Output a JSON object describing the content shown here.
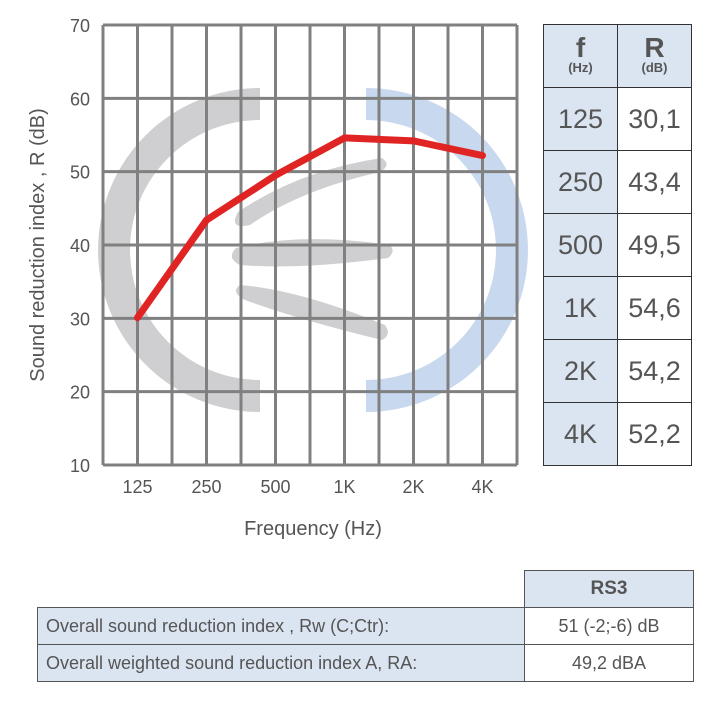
{
  "chart_data": {
    "type": "line",
    "title": "",
    "xlabel": "Frequency (Hz)",
    "ylabel": "Sound reduction index , R (dB)",
    "categories": [
      "125",
      "250",
      "500",
      "1K",
      "2K",
      "4K"
    ],
    "series": [
      {
        "name": "R",
        "values": [
          30.1,
          43.4,
          49.5,
          54.6,
          54.2,
          52.2
        ],
        "color": "#e02424"
      }
    ],
    "ylim": [
      10,
      70
    ],
    "yticks": [
      10,
      20,
      30,
      40,
      50,
      60,
      70
    ],
    "grid": true
  },
  "freq_table": {
    "headers": [
      {
        "main": "f",
        "unit": "(Hz)"
      },
      {
        "main": "R",
        "unit": "(dB)"
      }
    ],
    "rows": [
      [
        "125",
        "30,1"
      ],
      [
        "250",
        "43,4"
      ],
      [
        "500",
        "49,5"
      ],
      [
        "1K",
        "54,6"
      ],
      [
        "2K",
        "54,2"
      ],
      [
        "4K",
        "52,2"
      ]
    ]
  },
  "summary_table": {
    "header": "RS3",
    "rows": [
      {
        "label": "Overall sound reduction index , Rw (C;Ctr):",
        "value": "51 (-2;-6) dB"
      },
      {
        "label": "Overall weighted sound reduction index A, RA:",
        "value": "49,2 dBA"
      }
    ]
  },
  "colors": {
    "grid": "#808080",
    "line": "#e02424",
    "header_bg": "#dbe5f1"
  }
}
